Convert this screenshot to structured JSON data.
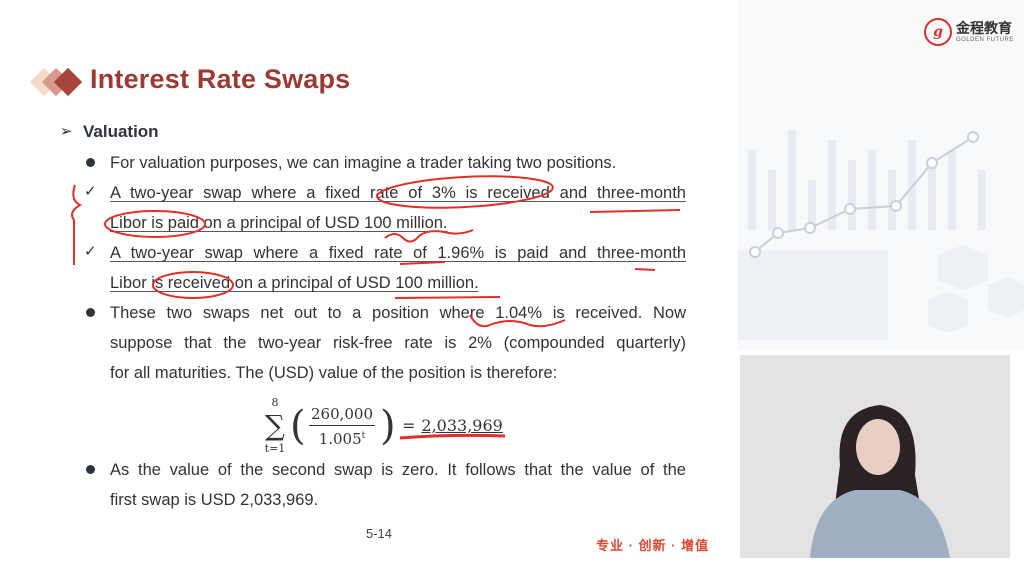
{
  "slide": {
    "title": "Interest Rate Swaps",
    "section": "Valuation",
    "bullet1": "For valuation purposes, we can imagine a trader taking two positions.",
    "check1_line1": "A two-year swap where a fixed rate of 3% is received and three-month",
    "check1_line2": "Libor is paid on a principal of USD 100 million.",
    "check2_line1": "A two-year swap where a fixed rate of 1.96% is paid and three-month",
    "check2_line2": "Libor is received on a principal of USD 100 million.",
    "bullet2_line1": "These two swaps net out to a position where 1.04% is received. Now",
    "bullet2_line2": "suppose that the two-year risk-free rate is 2% (compounded quarterly)",
    "bullet2_line3": "for all maturities. The (USD) value of the position is therefore:",
    "formula": {
      "sum_upper": "8",
      "sum_lower": "t=1",
      "numerator": "260,000",
      "denominator": "1.005",
      "exponent": "t",
      "equals": "=",
      "result": "2,033,969"
    },
    "bullet3_line1": "As the value of the second swap is zero. It follows that the value of the",
    "bullet3_line2": "first swap is USD 2,033,969.",
    "page_number": "5-14",
    "slogan": "专业 · 创新 · 增值"
  },
  "logo": {
    "name": "金程教育",
    "subtitle": "GOLDEN FUTURE"
  },
  "colors": {
    "title": "#9b3a33",
    "annotation": "#e0302a",
    "slogan": "#e0472f"
  }
}
